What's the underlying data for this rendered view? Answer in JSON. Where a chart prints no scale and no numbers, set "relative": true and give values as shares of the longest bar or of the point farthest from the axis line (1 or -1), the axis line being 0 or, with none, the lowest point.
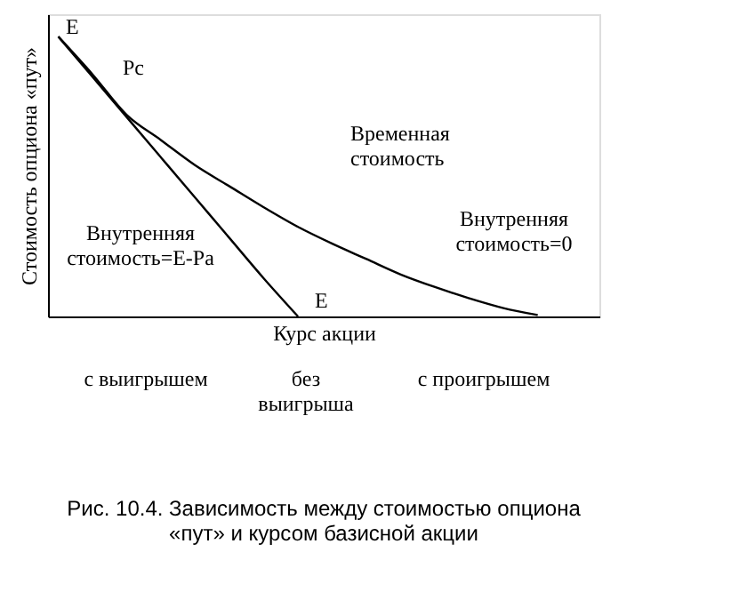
{
  "chart_data": {
    "type": "line",
    "relative": true,
    "title": "Рис. 10.4. Зависимость между стоимостью опциона «пут» и курсом базисной акции",
    "xlabel": "Курс акции",
    "ylabel": "Стоимость опциона «пут»",
    "categories": [
      null,
      null,
      null,
      null,
      null,
      null,
      null,
      null,
      null,
      null,
      null,
      null,
      null,
      null,
      null
    ],
    "series": [
      {
        "color": "#000000",
        "values": [
          1,
          0.856,
          0.712,
          0.568,
          0.424,
          0.28,
          0.136,
          0,
          null,
          null,
          null,
          null,
          null,
          null,
          null
        ]
      },
      {
        "color": "#000000",
        "values": [
          1,
          0.865,
          0.72,
          0.63,
          0.54,
          0.465,
          0.39,
          0.32,
          0.26,
          0.205,
          0.15,
          0.105,
          0.065,
          0.03,
          0.005
        ]
      }
    ],
    "annotations": [
      "E",
      "Pc",
      "Временная стоимость",
      "Внутренняя стоимость=0",
      "Внутренняя стоимость=E-Pa",
      "E",
      "с выигрышем",
      "без выигрыша",
      "с проигрышем"
    ],
    "legend": false,
    "grid": false,
    "tick_labels": false,
    "marker": "none",
    "line_style": "solid"
  }
}
